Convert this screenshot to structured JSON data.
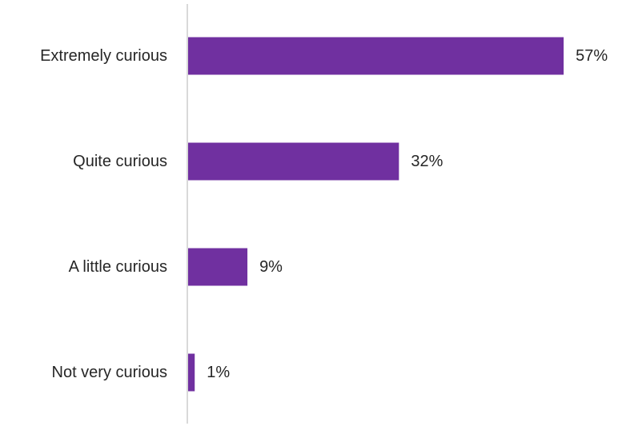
{
  "chart_data": {
    "type": "bar",
    "orientation": "horizontal",
    "categories": [
      "Extremely curious",
      "Quite curious",
      "A little curious",
      "Not very curious"
    ],
    "values": [
      57,
      32,
      9,
      1
    ],
    "value_labels": [
      "57%",
      "32%",
      "9%",
      "1%"
    ],
    "unit": "%",
    "xlim": [
      0,
      60
    ],
    "grid": false,
    "legend": "none",
    "title": "",
    "xlabel": "",
    "ylabel": "",
    "colors": {
      "bar": "#7030A0",
      "axis": "#D9D9D9",
      "text": "#262626"
    }
  }
}
